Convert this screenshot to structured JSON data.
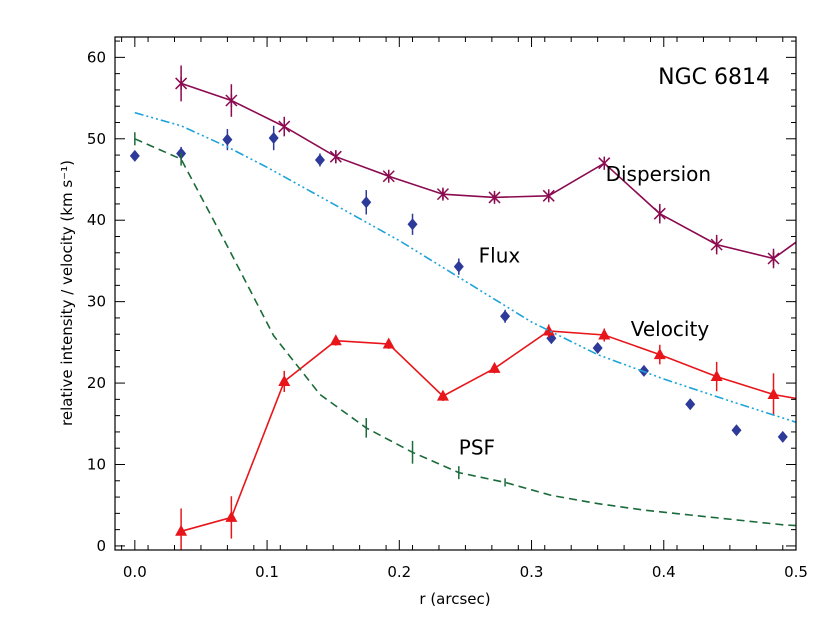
{
  "chart_data": {
    "type": "line",
    "annotation": "NGC 6814",
    "xlabel": "r (arcsec)",
    "ylabel": "relative intensity / velocity (km s⁻¹)",
    "xlim": [
      -0.015,
      0.5
    ],
    "ylim": [
      -0.5,
      62.5
    ],
    "xticks": [
      0.0,
      0.1,
      0.2,
      0.3,
      0.4,
      0.5
    ],
    "xtick_labels": [
      "0.0",
      "0.1",
      "0.2",
      "0.3",
      "0.4",
      "0.5"
    ],
    "yticks": [
      0,
      10,
      20,
      30,
      40,
      50,
      60
    ],
    "ytick_labels": [
      "0",
      "10",
      "20",
      "30",
      "40",
      "50",
      "60"
    ],
    "series": [
      {
        "name": "Dispersion",
        "style": "line-asterisk",
        "color": "#8b0a50",
        "x": [
          0.035,
          0.073,
          0.113,
          0.152,
          0.192,
          0.233,
          0.272,
          0.313,
          0.355,
          0.397,
          0.44,
          0.483,
          0.5
        ],
        "y": [
          56.8,
          54.7,
          51.5,
          47.8,
          45.4,
          43.2,
          42.8,
          43.0,
          47.0,
          40.8,
          37.0,
          35.3,
          37.3
        ],
        "err": [
          2.2,
          2.0,
          1.2,
          0.8,
          0.6,
          0.6,
          0.5,
          0.5,
          0.8,
          1.2,
          1.2,
          1.2,
          0
        ],
        "markers": [
          true,
          true,
          true,
          true,
          true,
          true,
          true,
          true,
          true,
          true,
          true,
          true,
          false
        ]
      },
      {
        "name": "Flux",
        "style": "diamond",
        "color": "#2d3a9a",
        "x": [
          0.0,
          0.035,
          0.07,
          0.105,
          0.14,
          0.175,
          0.21,
          0.245,
          0.28,
          0.315,
          0.35,
          0.385,
          0.42,
          0.455,
          0.49
        ],
        "y": [
          47.9,
          48.2,
          49.9,
          50.1,
          47.4,
          42.2,
          39.5,
          34.3,
          28.2,
          25.5,
          24.3,
          21.5,
          17.4,
          14.2,
          13.4
        ],
        "err": [
          0,
          0.8,
          1.3,
          1.5,
          0.8,
          1.5,
          1.3,
          1.0,
          0.8,
          0.6,
          0.5,
          0.5,
          0.4,
          0.4,
          0.4
        ]
      },
      {
        "name": "Velocity",
        "style": "line-triangle",
        "color": "#e8161b",
        "x": [
          0.035,
          0.073,
          0.113,
          0.152,
          0.192,
          0.233,
          0.272,
          0.313,
          0.355,
          0.397,
          0.44,
          0.483,
          0.5
        ],
        "y": [
          1.8,
          3.5,
          20.2,
          25.2,
          24.8,
          18.4,
          21.8,
          26.4,
          25.9,
          23.5,
          20.8,
          18.6,
          18.1
        ],
        "err": [
          2.8,
          2.6,
          1.3,
          0.6,
          0.6,
          0.6,
          0.6,
          0.8,
          0.8,
          1.2,
          1.8,
          2.6,
          0
        ],
        "markers": [
          true,
          true,
          true,
          true,
          true,
          true,
          true,
          true,
          true,
          true,
          true,
          true,
          false
        ]
      },
      {
        "name": "",
        "style": "dash-dot",
        "color": "#1da3d9",
        "x": [
          0.0,
          0.035,
          0.07,
          0.1,
          0.15,
          0.2,
          0.25,
          0.3,
          0.35,
          0.4,
          0.45,
          0.5
        ],
        "y": [
          53.2,
          51.6,
          49.0,
          46.5,
          42.0,
          37.5,
          32.5,
          27.5,
          23.5,
          20.5,
          17.8,
          15.2
        ]
      },
      {
        "name": "PSF",
        "style": "dashed",
        "color": "#1a6b3a",
        "x": [
          0.0,
          0.035,
          0.07,
          0.105,
          0.14,
          0.175,
          0.21,
          0.245,
          0.28,
          0.315,
          0.35,
          0.385,
          0.42,
          0.455,
          0.49,
          0.5
        ],
        "y": [
          50.0,
          47.5,
          36.8,
          25.8,
          18.6,
          14.5,
          11.5,
          9.0,
          7.8,
          6.2,
          5.2,
          4.4,
          3.8,
          3.2,
          2.6,
          2.5
        ],
        "err": [
          0.8,
          0.8,
          0,
          0,
          0,
          1.2,
          1.4,
          0.8,
          0.5,
          0,
          0,
          0,
          0,
          0,
          0,
          0
        ]
      }
    ],
    "labels": [
      {
        "text": "Dispersion",
        "x": 0.356,
        "y": 44.8
      },
      {
        "text": "Flux",
        "x": 0.26,
        "y": 34.8
      },
      {
        "text": "Velocity",
        "x": 0.375,
        "y": 25.8
      },
      {
        "text": "PSF",
        "x": 0.245,
        "y": 11.2
      }
    ]
  }
}
